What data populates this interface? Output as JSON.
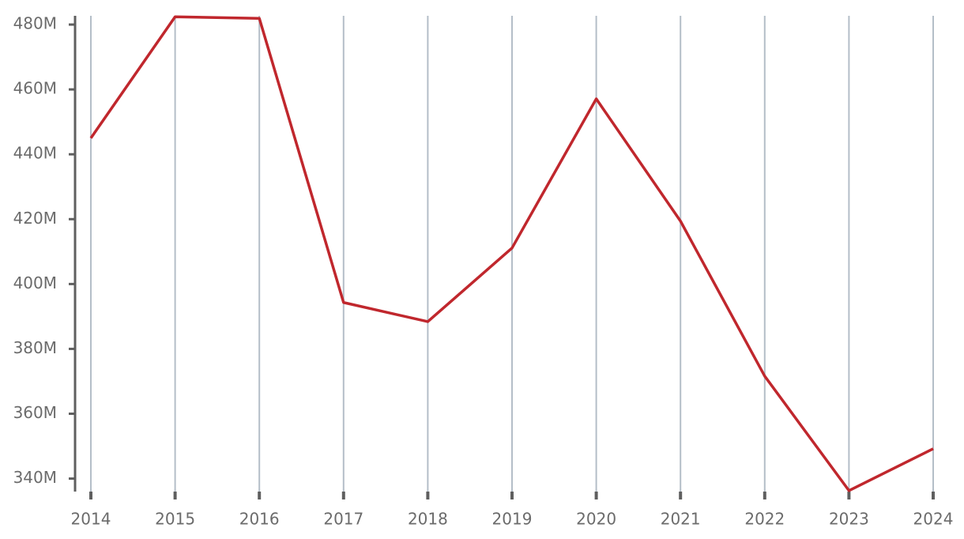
{
  "chart_data": {
    "type": "line",
    "categories": [
      "2014",
      "2015",
      "2016",
      "2017",
      "2018",
      "2019",
      "2020",
      "2021",
      "2022",
      "2023",
      "2024"
    ],
    "values": [
      445000000,
      482400000,
      481900000,
      394300000,
      388400000,
      411100000,
      457100000,
      419400000,
      371600000,
      336300000,
      349200000
    ],
    "color": "#c0272d",
    "ylim": [
      336000000,
      482700000
    ],
    "yticks": [
      {
        "value": 340000000,
        "label": "340M"
      },
      {
        "value": 360000000,
        "label": "360M"
      },
      {
        "value": 380000000,
        "label": "380M"
      },
      {
        "value": 400000000,
        "label": "400M"
      },
      {
        "value": 420000000,
        "label": "420M"
      },
      {
        "value": 440000000,
        "label": "440M"
      },
      {
        "value": 460000000,
        "label": "460M"
      },
      {
        "value": 480000000,
        "label": "480M"
      }
    ],
    "grid": true
  }
}
